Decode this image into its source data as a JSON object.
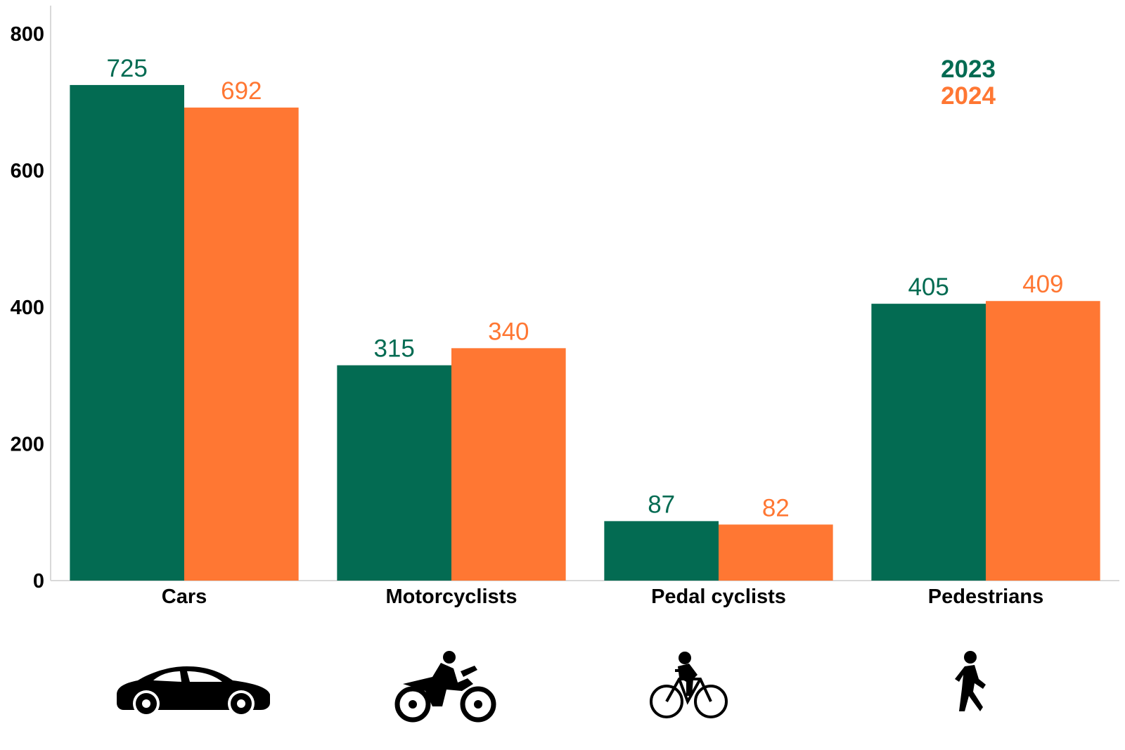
{
  "chart_data": {
    "type": "bar",
    "categories": [
      "Cars",
      "Motorcyclists",
      "Pedal cyclists",
      "Pedestrians"
    ],
    "series": [
      {
        "name": "2023",
        "values": [
          725,
          315,
          87,
          405
        ],
        "color": "#036b52"
      },
      {
        "name": "2024",
        "values": [
          692,
          340,
          82,
          409
        ],
        "color": "#ff7733"
      }
    ],
    "ylim": [
      0,
      800
    ],
    "yticks": [
      0,
      200,
      400,
      600,
      800
    ],
    "title": "",
    "xlabel": "",
    "ylabel": "",
    "legend_position": "top-right",
    "grid": false,
    "category_icons": [
      "car-icon",
      "motorcycle-icon",
      "bicycle-icon",
      "pedestrian-icon"
    ]
  }
}
